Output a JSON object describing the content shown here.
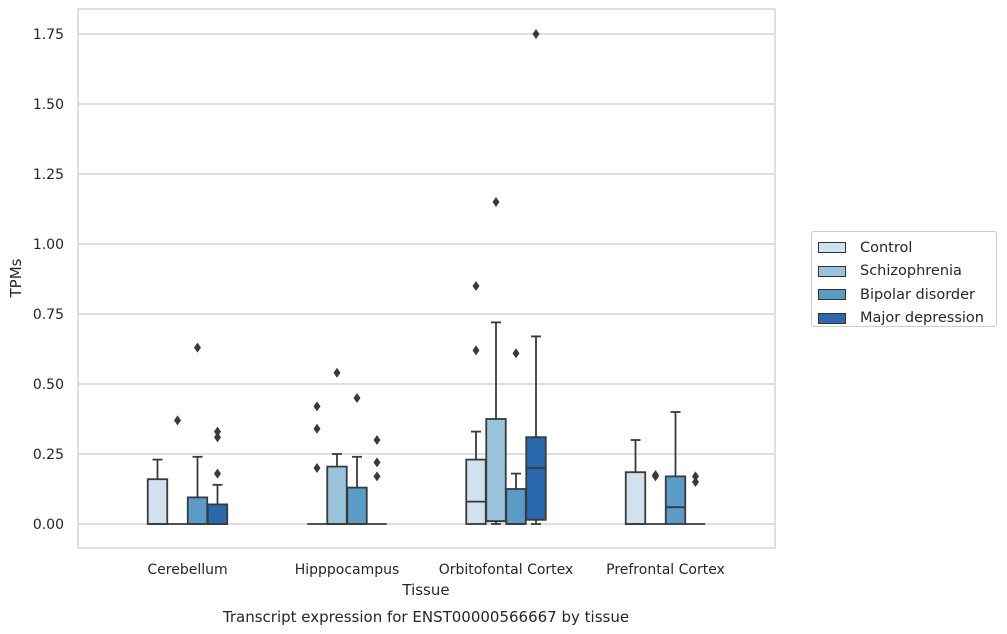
{
  "chart_data": {
    "type": "box",
    "title": "Transcript expression for ENST00000566667 by tissue",
    "xlabel": "Tissue",
    "ylabel": "TPMs",
    "ylim": [
      -0.085,
      1.84
    ],
    "yticks": [
      0.0,
      0.25,
      0.5,
      0.75,
      1.0,
      1.25,
      1.5,
      1.75
    ],
    "ytick_labels": [
      "0.00",
      "0.25",
      "0.50",
      "0.75",
      "1.00",
      "1.25",
      "1.50",
      "1.75"
    ],
    "grid": "horizontal",
    "legend_position": "right",
    "categories": [
      "Cerebellum",
      "Hipppocampus",
      "Orbitofontal Cortex",
      "Prefrontal Cortex"
    ],
    "series": [
      {
        "name": "Control",
        "color": "#d1e1f0",
        "boxes": [
          {
            "q1": 0.0,
            "median": 0.0,
            "q3": 0.16,
            "whislo": 0.0,
            "whishi": 0.23,
            "fliers": []
          },
          {
            "q1": 0.0,
            "median": 0.0,
            "q3": 0.0,
            "whislo": 0.0,
            "whishi": 0.0,
            "fliers": [
              0.2,
              0.34,
              0.42
            ]
          },
          {
            "q1": 0.0,
            "median": 0.08,
            "q3": 0.23,
            "whislo": 0.0,
            "whishi": 0.33,
            "fliers": [
              0.62,
              0.85
            ]
          },
          {
            "q1": 0.0,
            "median": 0.0,
            "q3": 0.185,
            "whislo": 0.0,
            "whishi": 0.3,
            "fliers": []
          }
        ]
      },
      {
        "name": "Schizophrenia",
        "color": "#9ac3dc",
        "boxes": [
          {
            "q1": 0.0,
            "median": 0.0,
            "q3": 0.0,
            "whislo": 0.0,
            "whishi": 0.0,
            "fliers": [
              0.37
            ]
          },
          {
            "q1": 0.0,
            "median": 0.0,
            "q3": 0.205,
            "whislo": 0.0,
            "whishi": 0.25,
            "fliers": [
              0.54
            ]
          },
          {
            "q1": 0.01,
            "median": 0.01,
            "q3": 0.375,
            "whislo": 0.0,
            "whishi": 0.72,
            "fliers": [
              1.15
            ]
          },
          {
            "q1": 0.0,
            "median": 0.0,
            "q3": 0.0,
            "whislo": 0.0,
            "whishi": 0.0,
            "fliers": [
              0.17,
              0.175
            ]
          }
        ]
      },
      {
        "name": "Bipolar disorder",
        "color": "#5b9bc8",
        "boxes": [
          {
            "q1": 0.0,
            "median": 0.0,
            "q3": 0.095,
            "whislo": 0.0,
            "whishi": 0.24,
            "fliers": [
              0.63
            ]
          },
          {
            "q1": 0.0,
            "median": 0.0,
            "q3": 0.13,
            "whislo": 0.0,
            "whishi": 0.24,
            "fliers": [
              0.45
            ]
          },
          {
            "q1": 0.0,
            "median": 0.0,
            "q3": 0.125,
            "whislo": 0.0,
            "whishi": 0.18,
            "fliers": [
              0.61
            ]
          },
          {
            "q1": 0.0,
            "median": 0.06,
            "q3": 0.17,
            "whislo": 0.0,
            "whishi": 0.4,
            "fliers": []
          }
        ]
      },
      {
        "name": "Major depression",
        "color": "#2a6aac",
        "boxes": [
          {
            "q1": 0.0,
            "median": 0.0,
            "q3": 0.07,
            "whislo": 0.0,
            "whishi": 0.14,
            "fliers": [
              0.18,
              0.31,
              0.33
            ]
          },
          {
            "q1": 0.0,
            "median": 0.0,
            "q3": 0.0,
            "whislo": 0.0,
            "whishi": 0.0,
            "fliers": [
              0.17,
              0.22,
              0.3
            ]
          },
          {
            "q1": 0.015,
            "median": 0.2,
            "q3": 0.31,
            "whislo": 0.0,
            "whishi": 0.67,
            "fliers": [
              1.75
            ]
          },
          {
            "q1": 0.0,
            "median": 0.0,
            "q3": 0.0,
            "whislo": 0.0,
            "whishi": 0.0,
            "fliers": [
              0.15,
              0.17
            ]
          }
        ]
      }
    ]
  }
}
